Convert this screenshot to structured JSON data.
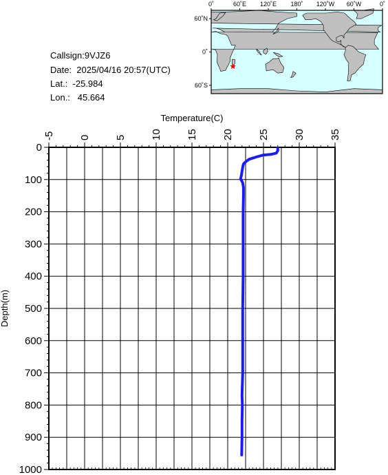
{
  "info": {
    "callsign": "Callsign:9VJZ6",
    "date": "Date:  2025/04/16 20:57(UTC)",
    "lat": "Lat.:  -25.984",
    "lon": "Lon.:   45.664"
  },
  "map": {
    "lon_labels": [
      "0˚",
      "60˚E",
      "120˚E",
      "180˚",
      "120˚W",
      "60˚W",
      "0˚"
    ],
    "lat_labels": [
      "60˚N",
      "0˚",
      "60˚S"
    ],
    "marker": {
      "lon": 45.664,
      "lat": -25.984,
      "color": "#ff0000"
    },
    "ocean_color": "#d6ffff",
    "land_color": "#c0c0c0"
  },
  "chart_data": {
    "type": "line",
    "xlabel": "Temperature(C)",
    "ylabel": "Depth(m)",
    "xlim": [
      -5,
      35
    ],
    "ylim": [
      1000,
      0
    ],
    "x_ticks": [
      "-5",
      "0",
      "5",
      "10",
      "15",
      "20",
      "25",
      "30",
      "35"
    ],
    "y_ticks": [
      "0",
      "100",
      "200",
      "300",
      "400",
      "500",
      "600",
      "700",
      "800",
      "900",
      "1000"
    ],
    "grid": true,
    "series": [
      {
        "color": "#1a1aff",
        "points": [
          [
            27.0,
            2
          ],
          [
            27.0,
            10
          ],
          [
            26.8,
            18
          ],
          [
            26.0,
            22
          ],
          [
            25.0,
            24
          ],
          [
            24.0,
            30
          ],
          [
            23.0,
            37
          ],
          [
            22.5,
            45
          ],
          [
            22.2,
            52
          ],
          [
            22.1,
            62
          ],
          [
            22.0,
            75
          ],
          [
            21.9,
            88
          ],
          [
            21.8,
            98
          ],
          [
            21.9,
            102
          ],
          [
            22.1,
            110
          ],
          [
            22.2,
            125
          ],
          [
            22.2,
            150
          ],
          [
            22.15,
            200
          ],
          [
            22.15,
            300
          ],
          [
            22.15,
            400
          ],
          [
            22.1,
            500
          ],
          [
            22.1,
            600
          ],
          [
            22.1,
            700
          ],
          [
            22.0,
            770
          ],
          [
            22.05,
            800
          ],
          [
            22.0,
            850
          ],
          [
            22.0,
            900
          ],
          [
            21.95,
            955
          ]
        ]
      }
    ]
  }
}
